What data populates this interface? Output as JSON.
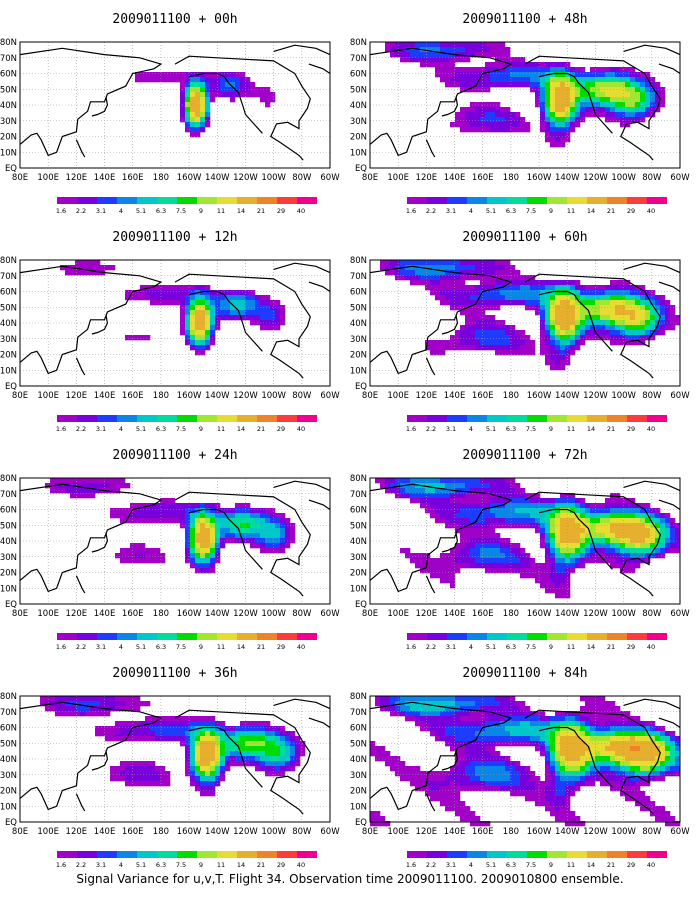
{
  "chart_data": {
    "type": "heatmap",
    "caption": "Signal Variance for u,v,T. Flight 34. Observation time 2009011100. 2009010800 ensemble.",
    "x_ticks": [
      "80E",
      "100E",
      "120E",
      "140E",
      "160E",
      "180",
      "160W",
      "140W",
      "120W",
      "100W",
      "80W",
      "60W"
    ],
    "y_ticks": [
      "EQ",
      "10N",
      "20N",
      "30N",
      "40N",
      "50N",
      "60N",
      "70N",
      "80N"
    ],
    "color_levels": [
      1.6,
      2.2,
      3.1,
      4,
      5.1,
      6.3,
      7.5,
      9,
      11,
      14,
      21,
      29,
      40
    ],
    "color_level_labels": [
      "1.6",
      "2.2",
      "3.1",
      "4",
      "5.1",
      "6.3",
      "7.5",
      "9",
      "11",
      "14",
      "21",
      "29",
      "40"
    ],
    "colors": [
      "#a000c8",
      "#7800dc",
      "#1e3cff",
      "#0a87e6",
      "#00c8c8",
      "#00dc9c",
      "#00dc00",
      "#a0e632",
      "#e6dc32",
      "#e6af2d",
      "#f08228",
      "#fa3c3c",
      "#f0008c"
    ],
    "panels": [
      {
        "title": "2009011100 + 00h",
        "lead": 0
      },
      {
        "title": "2009011100 + 48h",
        "lead": 48
      },
      {
        "title": "2009011100 + 12h",
        "lead": 12
      },
      {
        "title": "2009011100 + 60h",
        "lead": 60
      },
      {
        "title": "2009011100 + 24h",
        "lead": 24
      },
      {
        "title": "2009011100 + 72h",
        "lead": 72
      },
      {
        "title": "2009011100 + 36h",
        "lead": 36
      },
      {
        "title": "2009011100 + 84h",
        "lead": 84
      }
    ]
  }
}
